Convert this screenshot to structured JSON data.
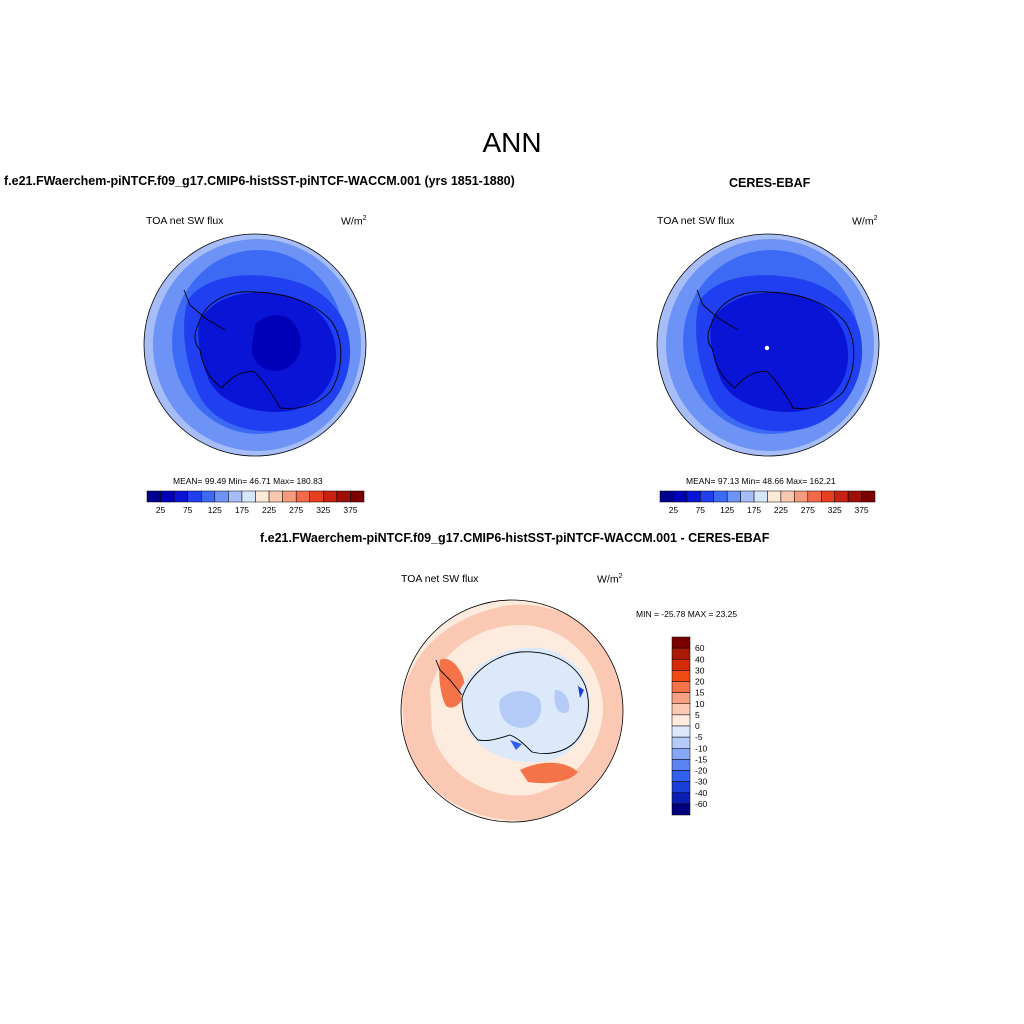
{
  "main_title": "ANN",
  "panels": [
    {
      "title": "f.e21.FWaerchem-piNTCF.f09_g17.CMIP6-histSST-piNTCF-WACCM.001 (yrs 1851-1880)",
      "variable": "TOA net SW flux",
      "units_base": "W/m",
      "units_exp": "2",
      "stats": "MEAN=  99.49  Min=  46.71  Max= 180.83"
    },
    {
      "title": "CERES-EBAF",
      "variable": "TOA net SW flux",
      "units_base": "W/m",
      "units_exp": "2",
      "stats": "MEAN=  97.13  Min=  48.66  Max= 162.21"
    },
    {
      "title": "f.e21.FWaerchem-piNTCF.f09_g17.CMIP6-histSST-piNTCF-WACCM.001 - CERES-EBAF",
      "variable": "TOA net SW flux",
      "units_base": "W/m",
      "units_exp": "2",
      "stats": "MIN = -25.78 MAX =  23.25"
    }
  ],
  "abs_colorbar": {
    "colors": [
      "#00008f",
      "#0000b8",
      "#0a14d6",
      "#1f3ff0",
      "#3c6af5",
      "#6e93f7",
      "#a6bdf7",
      "#d7e6fb",
      "#fde9d9",
      "#fbc7ad",
      "#f69a7c",
      "#f26a4a",
      "#e8401f",
      "#c92112",
      "#a00f07",
      "#7a0000"
    ],
    "labels": [
      "25",
      "75",
      "125",
      "175",
      "225",
      "275",
      "325",
      "375"
    ]
  },
  "diff_colorbar": {
    "colors": [
      "#7a0000",
      "#a81a05",
      "#d42a06",
      "#ee4a12",
      "#f57348",
      "#f8a285",
      "#fbc9b3",
      "#fdebdd",
      "#dce9fb",
      "#b4cbf7",
      "#86a7f4",
      "#5a84f2",
      "#3160ef",
      "#1a3ed8",
      "#0b1eb3",
      "#00007a"
    ],
    "labels": [
      "60",
      "40",
      "30",
      "20",
      "15",
      "10",
      "5",
      "0",
      "-5",
      "-10",
      "-15",
      "-20",
      "-30",
      "-40",
      "-60"
    ]
  }
}
